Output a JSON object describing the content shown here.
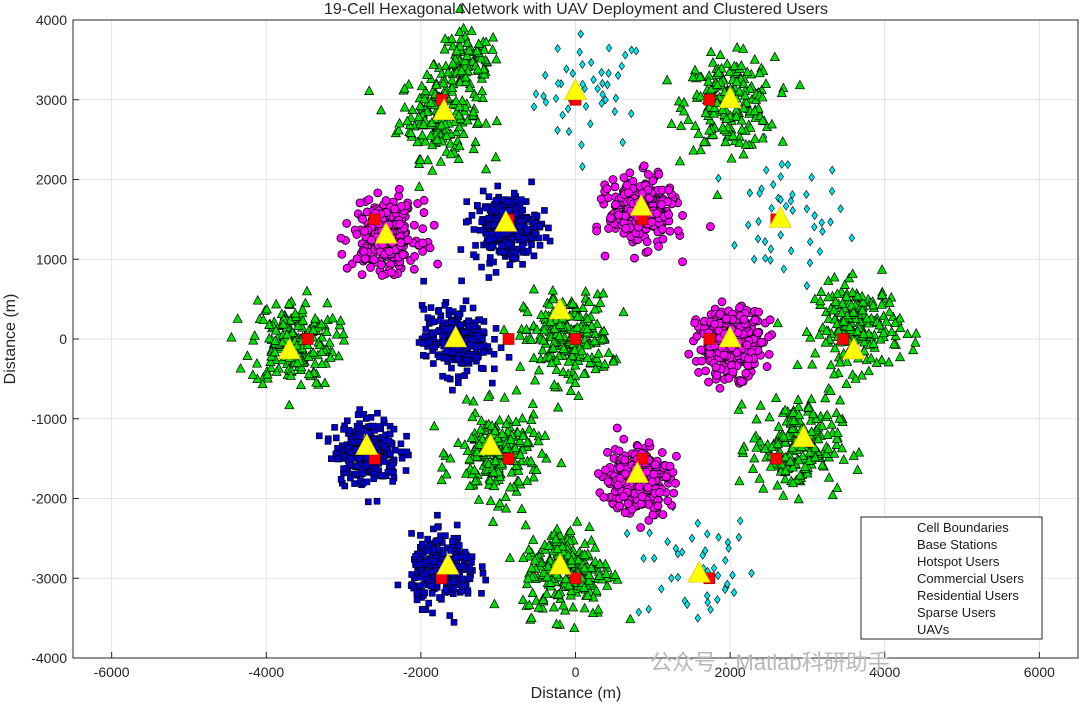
{
  "chart_data": {
    "type": "scatter",
    "title": "19-Cell Hexagonal Network with UAV Deployment and Clustered Users",
    "xlabel": "Distance (m)",
    "ylabel": "Distance (m)",
    "xlim": [
      -6500,
      6500
    ],
    "ylim": [
      -4000,
      4000
    ],
    "x_ticks": [
      -6000,
      -4000,
      -2000,
      0,
      2000,
      4000,
      6000
    ],
    "y_ticks": [
      -4000,
      -3000,
      -2000,
      -1000,
      0,
      1000,
      2000,
      3000,
      4000
    ],
    "x_tick_labels": [
      "-6000",
      "-4000",
      "-2000",
      "0",
      "2000",
      "4000",
      "6000"
    ],
    "y_tick_labels": [
      "-4000",
      "-3000",
      "-2000",
      "-1000",
      "0",
      "1000",
      "2000",
      "3000",
      "4000"
    ],
    "grid": true,
    "legend_position": "bottom-right",
    "legend": [
      "Cell Boundaries",
      "Base Stations",
      "Hotspot Users",
      "Commercial Users",
      "Residential Users",
      "Sparse Users",
      "UAVs"
    ],
    "series": [
      {
        "name": "Base Stations",
        "marker": "square",
        "color": "#ff0000",
        "points": [
          [
            0,
            0
          ],
          [
            1732,
            3000
          ],
          [
            -1732,
            3000
          ],
          [
            3464,
            0
          ],
          [
            -3464,
            0
          ],
          [
            1732,
            -3000
          ],
          [
            -1732,
            -3000
          ],
          [
            0,
            3000
          ],
          [
            2598,
            1500
          ],
          [
            2598,
            -1500
          ],
          [
            -866,
            -1500
          ],
          [
            -2598,
            1500
          ],
          [
            -866,
            1500
          ],
          [
            -2598,
            -1500
          ],
          [
            866,
            1500
          ],
          [
            866,
            -1500
          ],
          [
            -866,
            0
          ],
          [
            1732,
            0
          ],
          [
            0,
            -3000
          ]
        ]
      },
      {
        "name": "Hotspot Users",
        "marker": "circle",
        "color": "#ff00ff",
        "clusters": [
          {
            "center": [
              -2450,
              1300
            ],
            "spread": 380,
            "count": 300
          },
          {
            "center": [
              850,
              1600
            ],
            "spread": 380,
            "count": 300
          },
          {
            "center": [
              2000,
              -50
            ],
            "spread": 380,
            "count": 300
          },
          {
            "center": [
              800,
              -1750
            ],
            "spread": 380,
            "count": 300
          }
        ]
      },
      {
        "name": "Commercial Users",
        "marker": "square",
        "color": "#0000cc",
        "clusters": [
          {
            "center": [
              -900,
              1400
            ],
            "spread": 380,
            "count": 260
          },
          {
            "center": [
              -1550,
              -20
            ],
            "spread": 380,
            "count": 260
          },
          {
            "center": [
              -2700,
              -1400
            ],
            "spread": 380,
            "count": 260
          },
          {
            "center": [
              -1700,
              -2900
            ],
            "spread": 380,
            "count": 260
          }
        ]
      },
      {
        "name": "Residential Users",
        "marker": "triangle",
        "color": "#00e000",
        "clusters": [
          {
            "center": [
              -1750,
              2800
            ],
            "spread": 480,
            "count": 180
          },
          {
            "center": [
              -1400,
              3450
            ],
            "spread": 380,
            "count": 90
          },
          {
            "center": [
              2000,
              2950
            ],
            "spread": 520,
            "count": 200
          },
          {
            "center": [
              -3650,
              -50
            ],
            "spread": 500,
            "count": 200
          },
          {
            "center": [
              -100,
              0
            ],
            "spread": 500,
            "count": 220
          },
          {
            "center": [
              3650,
              150
            ],
            "spread": 500,
            "count": 200
          },
          {
            "center": [
              -1000,
              -1450
            ],
            "spread": 500,
            "count": 200
          },
          {
            "center": [
              2850,
              -1350
            ],
            "spread": 520,
            "count": 200
          },
          {
            "center": [
              -100,
              -2900
            ],
            "spread": 520,
            "count": 220
          }
        ]
      },
      {
        "name": "Sparse Users",
        "marker": "diamond",
        "color": "#00e5ee",
        "clusters": [
          {
            "center": [
              200,
              3100
            ],
            "spread": 650,
            "count": 45
          },
          {
            "center": [
              2700,
              1500
            ],
            "spread": 750,
            "count": 45
          },
          {
            "center": [
              1550,
              -2850
            ],
            "spread": 700,
            "count": 45
          }
        ]
      },
      {
        "name": "UAVs",
        "marker": "triangle",
        "color": "#ffff00",
        "points": [
          [
            -1700,
            2850
          ],
          [
            0,
            3100
          ],
          [
            2000,
            3000
          ],
          [
            -2450,
            1300
          ],
          [
            -900,
            1450
          ],
          [
            850,
            1650
          ],
          [
            2650,
            1500
          ],
          [
            -3700,
            -150
          ],
          [
            -1550,
            0
          ],
          [
            -200,
            350
          ],
          [
            2000,
            0
          ],
          [
            3600,
            -150
          ],
          [
            -2700,
            -1350
          ],
          [
            -1100,
            -1350
          ],
          [
            800,
            -1700
          ],
          [
            2950,
            -1250
          ],
          [
            -1650,
            -2850
          ],
          [
            -200,
            -2850
          ],
          [
            1600,
            -2950
          ]
        ]
      }
    ]
  },
  "watermark": "公众号 · Matlab科研助手"
}
